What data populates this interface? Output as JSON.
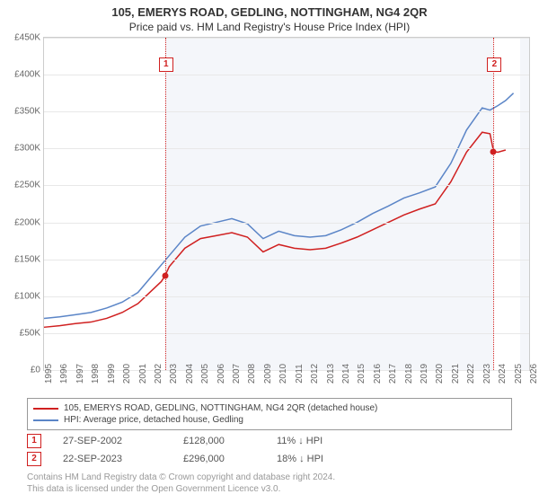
{
  "title": "105, EMERYS ROAD, GEDLING, NOTTINGHAM, NG4 2QR",
  "subtitle": "Price paid vs. HM Land Registry's House Price Index (HPI)",
  "chart": {
    "type": "line",
    "background_color": "#ffffff",
    "shaded_bg_color": "#f4f6fa",
    "grid_color": "#e8e8e8",
    "axis_color": "#cccccc",
    "tick_font_size": 10,
    "tick_color": "#666666",
    "ylim": [
      0,
      450000
    ],
    "y_ticks": [
      0,
      50000,
      100000,
      150000,
      200000,
      250000,
      300000,
      350000,
      400000,
      450000
    ],
    "y_tick_labels": [
      "£0",
      "£50K",
      "£100K",
      "£150K",
      "£200K",
      "£250K",
      "£300K",
      "£350K",
      "£400K",
      "£450K"
    ],
    "xlim": [
      1995,
      2026
    ],
    "x_ticks": [
      1995,
      1996,
      1997,
      1998,
      1999,
      2000,
      2001,
      2002,
      2003,
      2004,
      2005,
      2006,
      2007,
      2008,
      2009,
      2010,
      2011,
      2012,
      2013,
      2014,
      2015,
      2016,
      2017,
      2018,
      2019,
      2020,
      2021,
      2022,
      2023,
      2024,
      2025,
      2026
    ],
    "shaded_ranges": [
      {
        "from": 2002.74,
        "to": 2023.73
      },
      {
        "from": 2025.4,
        "to": 2026
      }
    ],
    "series": [
      {
        "name": "property",
        "label": "105, EMERYS ROAD, GEDLING, NOTTINGHAM, NG4 2QR (detached house)",
        "color": "#d02020",
        "line_width": 1.5,
        "points": [
          [
            1995,
            58000
          ],
          [
            1996,
            60000
          ],
          [
            1997,
            63000
          ],
          [
            1998,
            65000
          ],
          [
            1999,
            70000
          ],
          [
            2000,
            78000
          ],
          [
            2001,
            90000
          ],
          [
            2002.5,
            120000
          ],
          [
            2002.74,
            128000
          ],
          [
            2003,
            140000
          ],
          [
            2004,
            165000
          ],
          [
            2005,
            178000
          ],
          [
            2006,
            182000
          ],
          [
            2007,
            186000
          ],
          [
            2008,
            180000
          ],
          [
            2009,
            160000
          ],
          [
            2010,
            170000
          ],
          [
            2011,
            165000
          ],
          [
            2012,
            163000
          ],
          [
            2013,
            165000
          ],
          [
            2014,
            172000
          ],
          [
            2015,
            180000
          ],
          [
            2016,
            190000
          ],
          [
            2017,
            200000
          ],
          [
            2018,
            210000
          ],
          [
            2019,
            218000
          ],
          [
            2020,
            225000
          ],
          [
            2021,
            255000
          ],
          [
            2022,
            295000
          ],
          [
            2023,
            322000
          ],
          [
            2023.5,
            320000
          ],
          [
            2023.73,
            296000
          ],
          [
            2024,
            295000
          ],
          [
            2024.5,
            298000
          ]
        ]
      },
      {
        "name": "hpi",
        "label": "HPI: Average price, detached house, Gedling",
        "color": "#5b85c7",
        "line_width": 1.5,
        "points": [
          [
            1995,
            70000
          ],
          [
            1996,
            72000
          ],
          [
            1997,
            75000
          ],
          [
            1998,
            78000
          ],
          [
            1999,
            84000
          ],
          [
            2000,
            92000
          ],
          [
            2001,
            105000
          ],
          [
            2002,
            130000
          ],
          [
            2003,
            155000
          ],
          [
            2004,
            180000
          ],
          [
            2005,
            195000
          ],
          [
            2006,
            200000
          ],
          [
            2007,
            205000
          ],
          [
            2008,
            198000
          ],
          [
            2009,
            178000
          ],
          [
            2010,
            188000
          ],
          [
            2011,
            182000
          ],
          [
            2012,
            180000
          ],
          [
            2013,
            182000
          ],
          [
            2014,
            190000
          ],
          [
            2015,
            200000
          ],
          [
            2016,
            212000
          ],
          [
            2017,
            222000
          ],
          [
            2018,
            233000
          ],
          [
            2019,
            240000
          ],
          [
            2020,
            248000
          ],
          [
            2021,
            280000
          ],
          [
            2022,
            325000
          ],
          [
            2023,
            355000
          ],
          [
            2023.5,
            352000
          ],
          [
            2024,
            358000
          ],
          [
            2024.5,
            365000
          ],
          [
            2025,
            375000
          ]
        ]
      }
    ],
    "markers": [
      {
        "id": "1",
        "x": 2002.74,
        "y": 128000,
        "badge_top": 22,
        "dot_color": "#d02020"
      },
      {
        "id": "2",
        "x": 2023.73,
        "y": 296000,
        "badge_top": 22,
        "dot_color": "#d02020"
      }
    ],
    "marker_line_color": "#d02020"
  },
  "legend": {
    "border_color": "#999999",
    "font_size": 10
  },
  "sales": [
    {
      "id": "1",
      "date": "27-SEP-2002",
      "price": "£128,000",
      "delta": "11% ↓ HPI"
    },
    {
      "id": "2",
      "date": "22-SEP-2023",
      "price": "£296,000",
      "delta": "18% ↓ HPI"
    }
  ],
  "footnote_line1": "Contains HM Land Registry data © Crown copyright and database right 2024.",
  "footnote_line2": "This data is licensed under the Open Government Licence v3.0."
}
